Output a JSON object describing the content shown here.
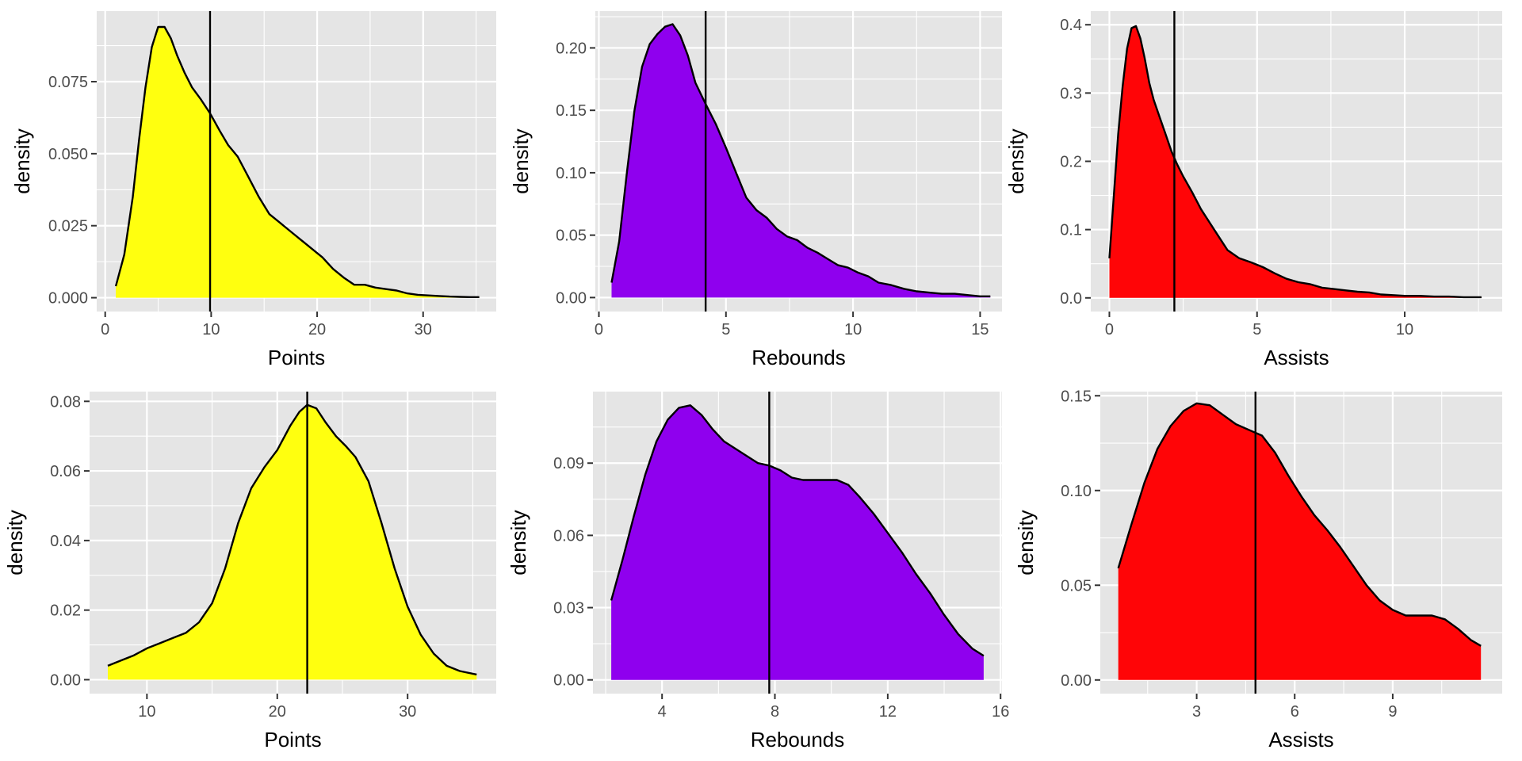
{
  "chart_data": [
    {
      "type": "area",
      "subtype": "density",
      "fill_color": "#FFFF0F",
      "xlabel": "Points",
      "ylabel": "density",
      "xlim": [
        -0.8,
        36.9
      ],
      "ylim": [
        -0.0048,
        0.0995
      ],
      "x_ticks": [
        0,
        10,
        20,
        30
      ],
      "y_ticks": [
        0.0,
        0.025,
        0.05,
        0.075
      ],
      "y_tick_labels": [
        "0.000",
        "0.025",
        "0.050",
        "0.075"
      ],
      "vline": 9.9,
      "x": [
        1.0,
        1.8,
        2.6,
        3.2,
        3.8,
        4.4,
        5.0,
        5.6,
        6.2,
        6.8,
        7.5,
        8.2,
        9.0,
        9.9,
        10.8,
        11.6,
        12.5,
        13.5,
        14.5,
        15.5,
        16.5,
        17.5,
        18.5,
        19.5,
        20.5,
        21.5,
        22.5,
        23.5,
        24.5,
        25.5,
        26.5,
        27.5,
        28.5,
        29.5,
        30.5,
        31.5,
        32.5,
        33.5,
        34.5,
        35.3
      ],
      "y": [
        0.004,
        0.015,
        0.035,
        0.055,
        0.073,
        0.087,
        0.094,
        0.094,
        0.09,
        0.084,
        0.078,
        0.073,
        0.069,
        0.064,
        0.058,
        0.053,
        0.049,
        0.042,
        0.035,
        0.029,
        0.026,
        0.023,
        0.02,
        0.017,
        0.014,
        0.01,
        0.007,
        0.0045,
        0.0045,
        0.0035,
        0.003,
        0.0025,
        0.0015,
        0.001,
        0.0008,
        0.0006,
        0.0004,
        0.0003,
        0.0002,
        0.0002
      ]
    },
    {
      "type": "area",
      "subtype": "density",
      "fill_color": "#8F00EE",
      "xlabel": "Rebounds",
      "ylabel": "density",
      "xlim": [
        -0.14,
        15.86
      ],
      "ylim": [
        -0.0112,
        0.2295
      ],
      "x_ticks": [
        0,
        5,
        10,
        15
      ],
      "y_ticks": [
        0.0,
        0.05,
        0.1,
        0.15,
        0.2
      ],
      "y_tick_labels": [
        "0.00",
        "0.05",
        "0.10",
        "0.15",
        "0.20"
      ],
      "vline": 4.2,
      "x": [
        0.5,
        0.8,
        1.1,
        1.4,
        1.7,
        2.0,
        2.3,
        2.6,
        2.9,
        3.2,
        3.5,
        3.8,
        4.2,
        4.6,
        5.0,
        5.4,
        5.8,
        6.2,
        6.6,
        7.0,
        7.4,
        7.8,
        8.2,
        8.6,
        9.0,
        9.4,
        9.8,
        10.2,
        10.6,
        11.0,
        11.5,
        12.0,
        12.5,
        13.0,
        13.5,
        14.0,
        14.5,
        15.0,
        15.4
      ],
      "y": [
        0.012,
        0.045,
        0.1,
        0.15,
        0.185,
        0.203,
        0.211,
        0.217,
        0.219,
        0.21,
        0.194,
        0.172,
        0.155,
        0.139,
        0.12,
        0.1,
        0.08,
        0.07,
        0.064,
        0.055,
        0.049,
        0.046,
        0.04,
        0.036,
        0.031,
        0.026,
        0.024,
        0.02,
        0.017,
        0.012,
        0.01,
        0.007,
        0.005,
        0.004,
        0.003,
        0.003,
        0.002,
        0.001,
        0.001
      ]
    },
    {
      "type": "area",
      "subtype": "density",
      "fill_color": "#FF0507",
      "xlabel": "Assists",
      "ylabel": "density",
      "xlim": [
        -0.63,
        13.3
      ],
      "ylim": [
        -0.02,
        0.42
      ],
      "x_ticks": [
        0,
        5,
        10
      ],
      "y_ticks": [
        0.0,
        0.1,
        0.2,
        0.3,
        0.4
      ],
      "y_tick_labels": [
        "0.0",
        "0.1",
        "0.2",
        "0.3",
        "0.4"
      ],
      "vline": 2.2,
      "x": [
        0.0,
        0.15,
        0.3,
        0.45,
        0.6,
        0.75,
        0.9,
        1.05,
        1.2,
        1.35,
        1.5,
        1.7,
        1.9,
        2.1,
        2.3,
        2.5,
        2.8,
        3.1,
        3.4,
        3.7,
        4.0,
        4.4,
        4.8,
        5.2,
        5.6,
        6.0,
        6.4,
        6.8,
        7.2,
        7.6,
        8.0,
        8.4,
        8.8,
        9.2,
        9.6,
        10.0,
        10.5,
        11.0,
        11.5,
        12.0,
        12.6
      ],
      "y": [
        0.058,
        0.15,
        0.24,
        0.31,
        0.365,
        0.395,
        0.398,
        0.38,
        0.35,
        0.315,
        0.29,
        0.265,
        0.24,
        0.215,
        0.195,
        0.178,
        0.155,
        0.13,
        0.11,
        0.09,
        0.07,
        0.058,
        0.052,
        0.045,
        0.036,
        0.028,
        0.023,
        0.02,
        0.015,
        0.013,
        0.011,
        0.009,
        0.008,
        0.005,
        0.004,
        0.003,
        0.003,
        0.002,
        0.002,
        0.001,
        0.001
      ]
    },
    {
      "type": "area",
      "subtype": "density",
      "fill_color": "#FFFF0F",
      "xlabel": "Points",
      "ylabel": "density",
      "xlim": [
        5.6,
        36.8
      ],
      "ylim": [
        -0.004,
        0.0828
      ],
      "x_ticks": [
        10,
        20,
        30
      ],
      "y_ticks": [
        0.0,
        0.02,
        0.04,
        0.06,
        0.08
      ],
      "y_tick_labels": [
        "0.00",
        "0.02",
        "0.04",
        "0.06",
        "0.08"
      ],
      "vline": 22.3,
      "x": [
        7.0,
        8.0,
        9.0,
        10.0,
        11.0,
        12.0,
        13.0,
        14.0,
        15.0,
        16.0,
        17.0,
        18.0,
        19.0,
        20.0,
        21.0,
        21.7,
        22.3,
        23.0,
        23.7,
        24.5,
        25.3,
        26.0,
        27.0,
        28.0,
        29.0,
        30.0,
        31.0,
        32.0,
        33.0,
        34.0,
        35.3
      ],
      "y": [
        0.004,
        0.0055,
        0.007,
        0.009,
        0.0105,
        0.012,
        0.0135,
        0.0165,
        0.022,
        0.032,
        0.045,
        0.055,
        0.061,
        0.066,
        0.073,
        0.077,
        0.079,
        0.078,
        0.074,
        0.07,
        0.067,
        0.064,
        0.057,
        0.045,
        0.032,
        0.021,
        0.013,
        0.0075,
        0.004,
        0.0025,
        0.0015
      ]
    },
    {
      "type": "area",
      "subtype": "density",
      "fill_color": "#8F00EE",
      "xlabel": "Rebounds",
      "ylabel": "density",
      "xlim": [
        1.55,
        16.05
      ],
      "ylim": [
        -0.0057,
        0.1197
      ],
      "x_ticks": [
        4,
        8,
        12,
        16
      ],
      "y_ticks": [
        0.0,
        0.03,
        0.06,
        0.09
      ],
      "y_tick_labels": [
        "0.00",
        "0.03",
        "0.06",
        "0.09"
      ],
      "vline": 7.8,
      "x": [
        2.2,
        2.6,
        3.0,
        3.4,
        3.8,
        4.2,
        4.6,
        5.0,
        5.4,
        5.8,
        6.2,
        6.6,
        7.0,
        7.4,
        7.8,
        8.2,
        8.6,
        9.0,
        9.4,
        9.8,
        10.2,
        10.6,
        11.0,
        11.5,
        12.0,
        12.5,
        13.0,
        13.5,
        14.0,
        14.5,
        15.0,
        15.4
      ],
      "y": [
        0.033,
        0.05,
        0.068,
        0.085,
        0.099,
        0.108,
        0.113,
        0.114,
        0.11,
        0.104,
        0.099,
        0.096,
        0.093,
        0.09,
        0.089,
        0.087,
        0.084,
        0.083,
        0.083,
        0.083,
        0.083,
        0.081,
        0.076,
        0.069,
        0.061,
        0.053,
        0.044,
        0.036,
        0.027,
        0.019,
        0.013,
        0.01
      ]
    },
    {
      "type": "area",
      "subtype": "density",
      "fill_color": "#FF0507",
      "xlabel": "Assists",
      "ylabel": "density",
      "xlim": [
        0.05,
        12.35
      ],
      "ylim": [
        -0.0072,
        0.1522
      ],
      "x_ticks": [
        3,
        6,
        9
      ],
      "y_ticks": [
        0.0,
        0.05,
        0.1,
        0.15
      ],
      "y_tick_labels": [
        "0.00",
        "0.05",
        "0.10",
        "0.15"
      ],
      "vline": 4.8,
      "x": [
        0.6,
        1.0,
        1.4,
        1.8,
        2.2,
        2.6,
        3.0,
        3.4,
        3.8,
        4.2,
        4.6,
        5.0,
        5.4,
        5.8,
        6.2,
        6.6,
        7.0,
        7.4,
        7.8,
        8.2,
        8.6,
        9.0,
        9.4,
        9.8,
        10.2,
        10.6,
        11.0,
        11.4,
        11.7
      ],
      "y": [
        0.059,
        0.082,
        0.104,
        0.122,
        0.134,
        0.142,
        0.146,
        0.145,
        0.14,
        0.135,
        0.132,
        0.129,
        0.12,
        0.108,
        0.097,
        0.087,
        0.079,
        0.07,
        0.06,
        0.05,
        0.042,
        0.037,
        0.034,
        0.034,
        0.034,
        0.032,
        0.027,
        0.021,
        0.018
      ]
    }
  ]
}
